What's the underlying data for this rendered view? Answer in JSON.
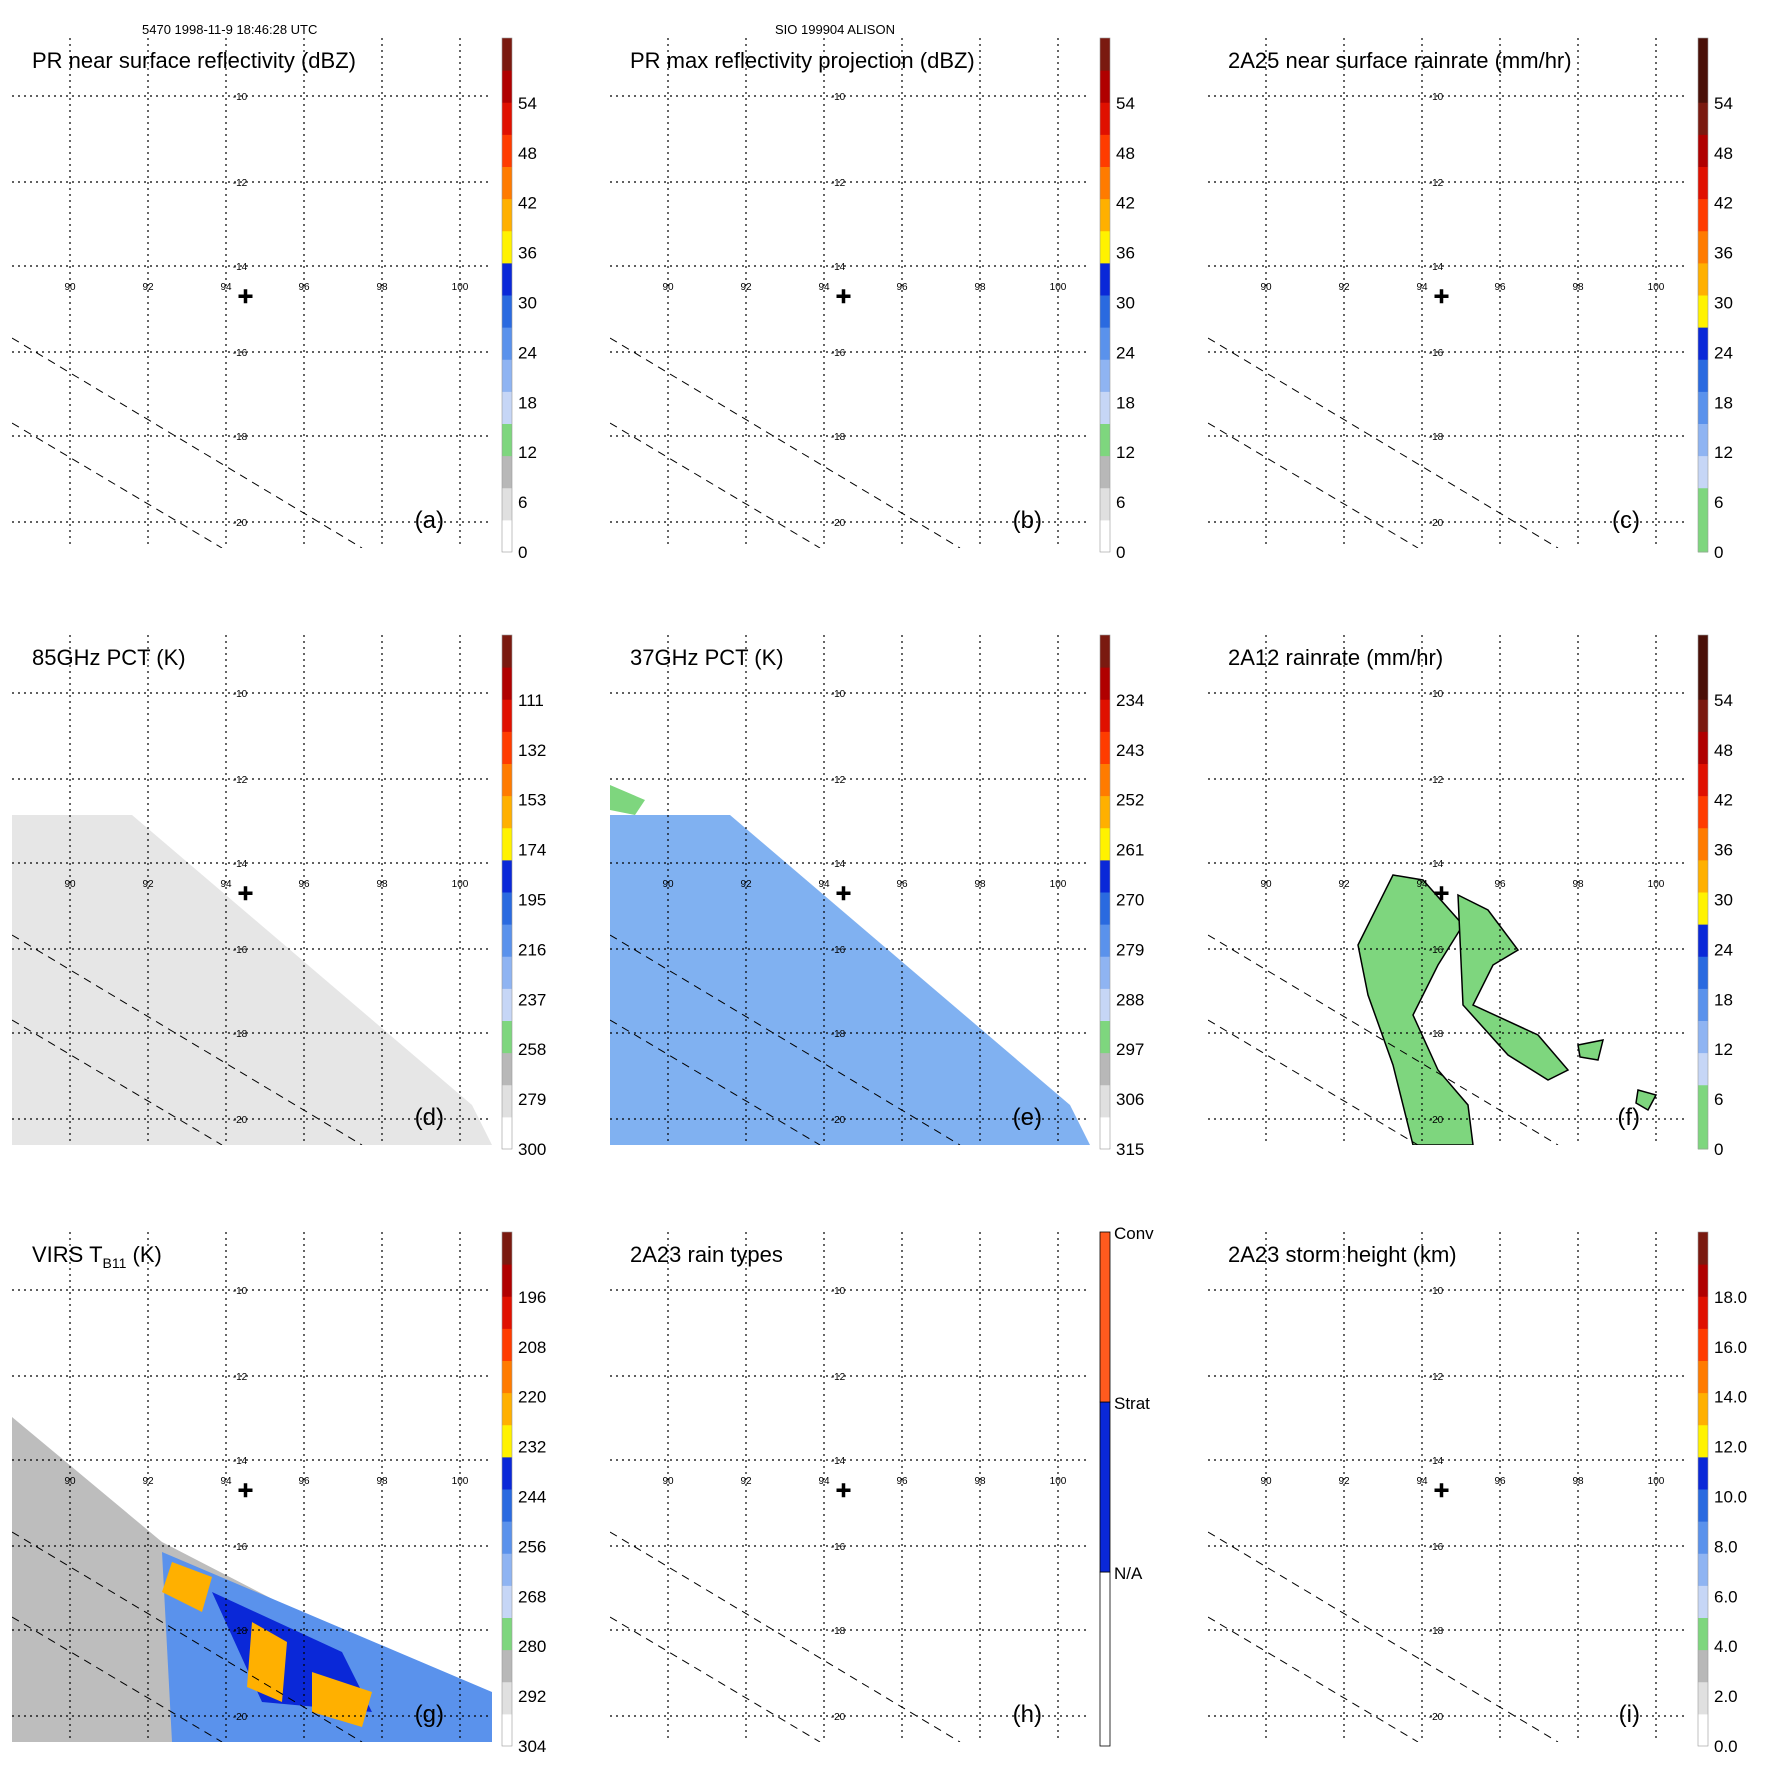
{
  "header": {
    "left": "5470 1998-11-9 18:46:28 UTC",
    "center": "SIO 199904 ALISON"
  },
  "map": {
    "lon_ticks": [
      "90",
      "92",
      "94",
      "96",
      "98",
      "100"
    ],
    "lat_ticks": [
      "-10",
      "-12",
      "-14",
      "-16",
      "-18",
      "-20"
    ],
    "storm_center": {
      "lon": 94.5,
      "lat": -14.7
    }
  },
  "colors": {
    "grays": [
      "#ffffff",
      "#e0e0e0",
      "#b8b8b8"
    ],
    "green": "#7ed67e",
    "blues": [
      "#c6d6f6",
      "#8fb4f2",
      "#5a92ec",
      "#2a6ae0",
      "#0a28d8"
    ],
    "warm": [
      "#fff200",
      "#ffb000",
      "#ff7b00",
      "#ff3c00",
      "#e01000",
      "#b00000",
      "#7a1a10",
      "#4a1008"
    ],
    "rain_types": {
      "conv": "#ff5a1e",
      "strat": "#0a28d8",
      "na": "#ffffff"
    },
    "swath_gray": "#e6e6e6",
    "swath_blue": "#6aa3ee"
  },
  "panels": [
    {
      "id": "a",
      "title": "PR near surface reflectivity (dBZ)",
      "label": "(a)",
      "type": "scale",
      "ticks": [
        "0",
        "6",
        "12",
        "18",
        "24",
        "30",
        "36",
        "42",
        "48",
        "54"
      ],
      "fill": "pr"
    },
    {
      "id": "b",
      "title": "PR max reflectivity projection (dBZ)",
      "label": "(b)",
      "type": "scale",
      "ticks": [
        "0",
        "6",
        "12",
        "18",
        "24",
        "30",
        "36",
        "42",
        "48",
        "54"
      ],
      "fill": "pr"
    },
    {
      "id": "c",
      "title": "2A25 near surface rainrate (mm/hr)",
      "label": "(c)",
      "type": "rain",
      "ticks": [
        "0",
        "6",
        "12",
        "18",
        "24",
        "30",
        "36",
        "42",
        "48",
        "54"
      ],
      "fill": "pr"
    },
    {
      "id": "d",
      "title": "85GHz PCT (K)",
      "label": "(d)",
      "type": "scale",
      "ticks": [
        "300",
        "279",
        "258",
        "237",
        "216",
        "195",
        "174",
        "153",
        "132",
        "111"
      ],
      "fill": "swath_gray"
    },
    {
      "id": "e",
      "title": "37GHz PCT (K)",
      "label": "(e)",
      "type": "scale",
      "ticks": [
        "315",
        "306",
        "297",
        "288",
        "279",
        "270",
        "261",
        "252",
        "243",
        "234"
      ],
      "fill": "swath_blue"
    },
    {
      "id": "f",
      "title": "2A12 rainrate (mm/hr)",
      "label": "(f)",
      "type": "rain",
      "ticks": [
        "0",
        "6",
        "12",
        "18",
        "24",
        "30",
        "36",
        "42",
        "48",
        "54"
      ],
      "fill": "rain12"
    },
    {
      "id": "g",
      "title_main": "VIRS T",
      "title_sub": "B11",
      "title_unit": " (K)",
      "label": "(g)",
      "type": "scale",
      "ticks": [
        "304",
        "292",
        "280",
        "268",
        "256",
        "244",
        "232",
        "220",
        "208",
        "196"
      ],
      "fill": "virs"
    },
    {
      "id": "h",
      "title": "2A23 rain types",
      "label": "(h)",
      "type": "types",
      "ticks": [
        "N/A",
        "Strat",
        "Conv"
      ],
      "fill": "pr"
    },
    {
      "id": "i",
      "title": "2A23 storm height (km)",
      "label": "(i)",
      "type": "scale",
      "ticks": [
        "0.0",
        "2.0",
        "4.0",
        "6.0",
        "8.0",
        "10.0",
        "12.0",
        "14.0",
        "16.0",
        "18.0"
      ],
      "fill": "pr"
    }
  ]
}
